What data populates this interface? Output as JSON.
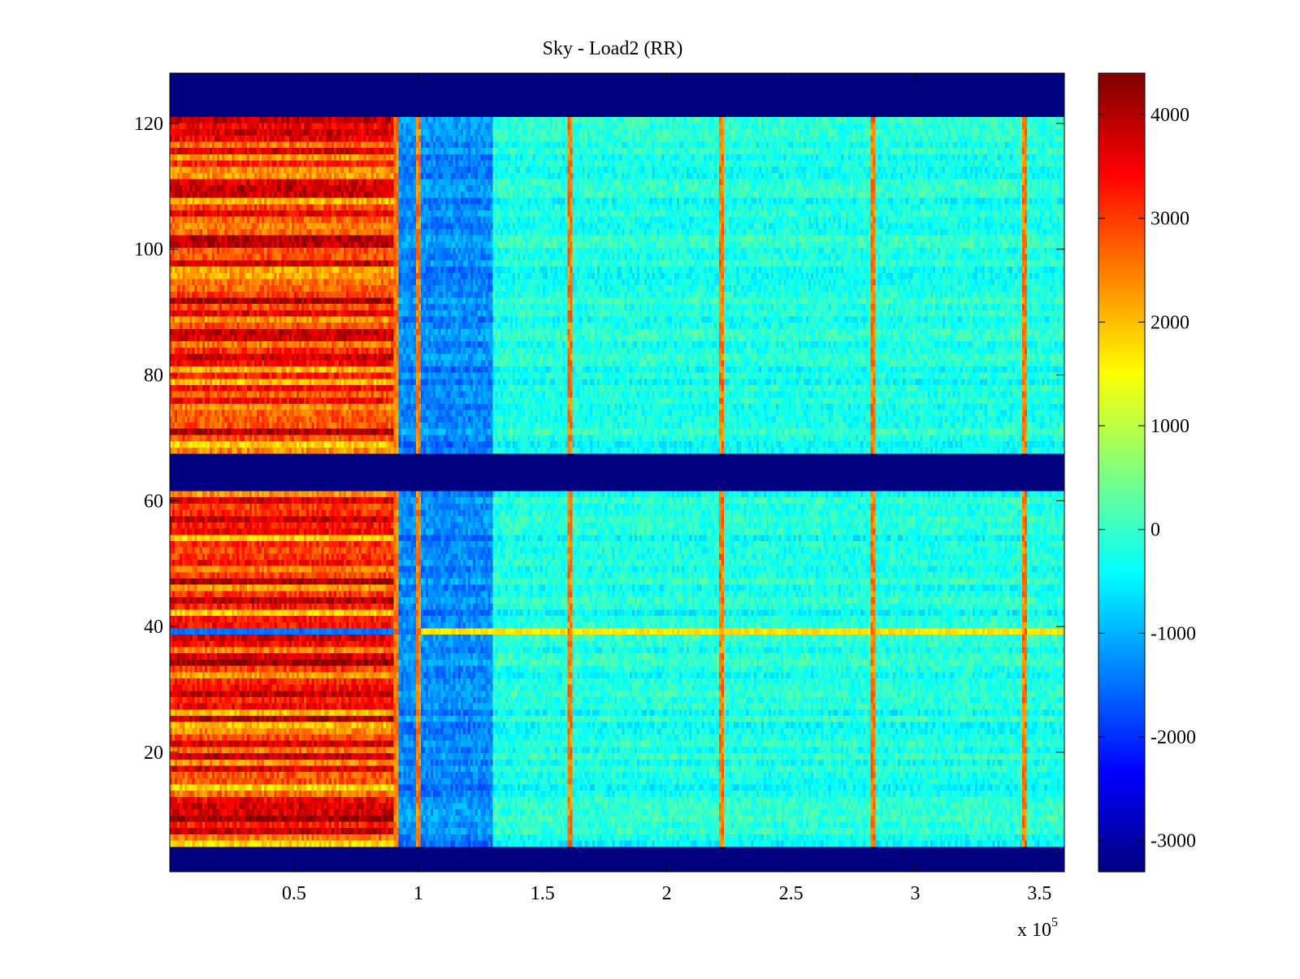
{
  "chart_data": {
    "type": "heatmap",
    "title": "Sky - Load2 (RR)",
    "xlabel": "",
    "ylabel": "",
    "x_multiplier_label": "x 10",
    "x_multiplier_exponent": "5",
    "xlim": [
      0,
      360000
    ],
    "ylim": [
      1,
      128
    ],
    "x_ticks": [
      50000,
      100000,
      150000,
      200000,
      250000,
      300000,
      350000
    ],
    "x_tick_labels": [
      "0.5",
      "1",
      "1.5",
      "2",
      "2.5",
      "3",
      "3.5"
    ],
    "y_ticks": [
      20,
      40,
      60,
      80,
      100,
      120
    ],
    "y_tick_labels": [
      "20",
      "40",
      "60",
      "80",
      "100",
      "120"
    ],
    "colormap": "jet",
    "color_range": [
      -3300,
      4400
    ],
    "colorbar_ticks": [
      -3000,
      -2000,
      -1000,
      0,
      1000,
      2000,
      3000,
      4000
    ],
    "colorbar_tick_labels": [
      "-3000",
      "-2000",
      "-1000",
      "0",
      "1000",
      "2000",
      "3000",
      "4000"
    ],
    "empty_rows": [
      [
        1,
        4
      ],
      [
        62,
        67
      ],
      [
        122,
        128
      ]
    ],
    "regions": [
      {
        "x_range": [
          0,
          90000
        ],
        "level": 3000,
        "description_level": "high"
      },
      {
        "x_range": [
          91000,
          130000
        ],
        "level": -1300
      },
      {
        "x_range": [
          130000,
          360000
        ],
        "level": -200
      }
    ],
    "vertical_spikes_x": [
      91000,
      100000,
      161000,
      222000,
      283000,
      344000
    ],
    "spike_level": 2500,
    "anomalous_row": {
      "y": 39,
      "x_split": 100000,
      "left_level": -1500,
      "right_level": 1700
    }
  }
}
